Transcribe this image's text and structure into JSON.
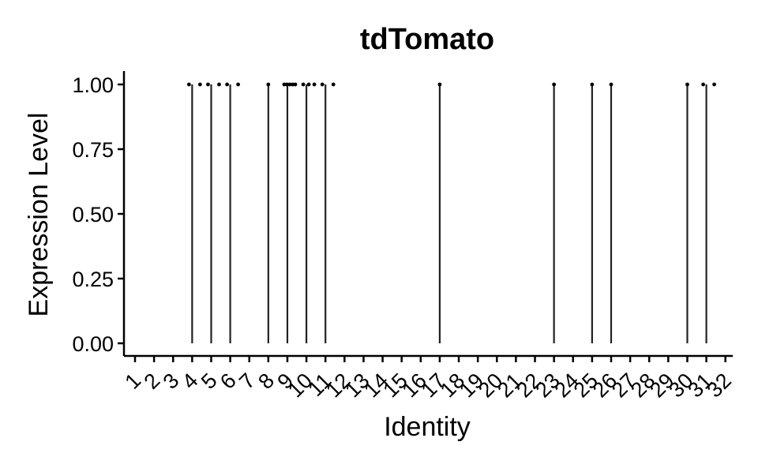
{
  "chart_data": {
    "type": "violin",
    "title": "tdTomato",
    "xlabel": "Identity",
    "ylabel": "Expression Level",
    "ylim": [
      0,
      1
    ],
    "yticks": [
      "0.00",
      "0.25",
      "0.50",
      "0.75",
      "1.00"
    ],
    "ytick_values": [
      0,
      0.25,
      0.5,
      0.75,
      1.0
    ],
    "categories": [
      "1",
      "2",
      "3",
      "4",
      "5",
      "6",
      "7",
      "8",
      "9",
      "10",
      "11",
      "12",
      "13",
      "14",
      "15",
      "16",
      "17",
      "18",
      "19",
      "20",
      "21",
      "22",
      "23",
      "24",
      "25",
      "26",
      "27",
      "28",
      "29",
      "30",
      "31",
      "32"
    ],
    "expressing_categories": [
      "4",
      "5",
      "6",
      "8",
      "9",
      "10",
      "11",
      "17",
      "23",
      "25",
      "26",
      "30",
      "31"
    ],
    "points": [
      {
        "category": "4",
        "values": [
          1,
          1
        ]
      },
      {
        "category": "5",
        "values": [
          1,
          1
        ]
      },
      {
        "category": "6",
        "values": [
          1,
          1
        ]
      },
      {
        "category": "8",
        "values": [
          1
        ]
      },
      {
        "category": "9",
        "values": [
          1,
          1,
          1,
          1,
          1
        ]
      },
      {
        "category": "10",
        "values": [
          1,
          1,
          1
        ]
      },
      {
        "category": "11",
        "values": [
          1,
          1
        ]
      },
      {
        "category": "17",
        "values": [
          1
        ]
      },
      {
        "category": "23",
        "values": [
          1
        ]
      },
      {
        "category": "25",
        "values": [
          1
        ]
      },
      {
        "category": "26",
        "values": [
          1
        ]
      },
      {
        "category": "30",
        "values": [
          1
        ]
      },
      {
        "category": "31",
        "values": [
          1,
          1
        ]
      }
    ],
    "grid": false,
    "legend": "none",
    "colors": {
      "axis": "#000000",
      "violin": "#222222",
      "point": "#000000"
    }
  }
}
